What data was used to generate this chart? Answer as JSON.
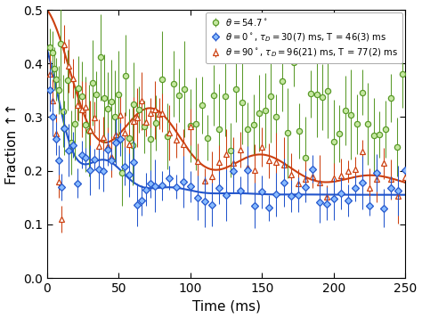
{
  "title": "",
  "xlabel": "Time (ms)",
  "ylabel": "Fraction ↑↑",
  "xlim": [
    0,
    250
  ],
  "ylim": [
    0,
    0.5
  ],
  "xticks": [
    0,
    50,
    100,
    150,
    200,
    250
  ],
  "yticks": [
    0,
    0.1,
    0.2,
    0.3,
    0.4,
    0.5
  ],
  "legend_labels": [
    "$\\theta = 54.7^\\circ$",
    "$\\theta = 0^\\circ$, $\\tau_D = 30(7)$ ms, T = 46(3) ms",
    "$\\theta = 90^\\circ$, $\\tau_D = 96(21)$ ms, T = 77(2) ms"
  ],
  "colors": {
    "green": "#5a9a2a",
    "blue": "#2255cc",
    "orange": "#cc4010"
  },
  "green_face": "#c5e8a0",
  "blue_face": "#88bbff",
  "orange_face": "#ffffff",
  "background_color": "#ffffff",
  "figsize": [
    4.74,
    3.57
  ],
  "dpi": 100
}
